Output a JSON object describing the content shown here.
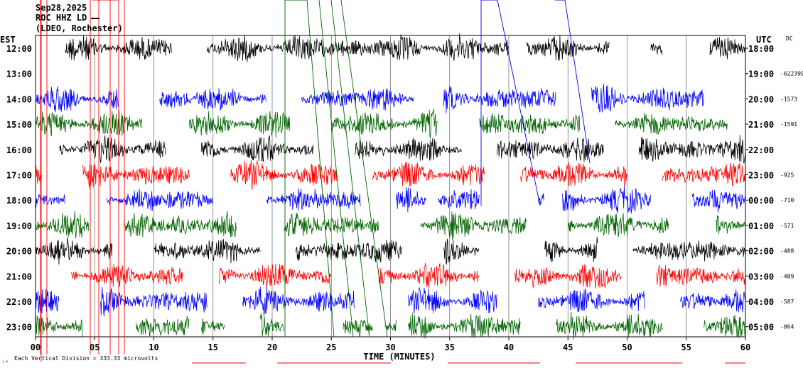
{
  "header": {
    "date": "Sep28,2025",
    "station": "ROC HHZ LD",
    "network": "(LDEO, Rochester)"
  },
  "left_label": "EST",
  "right_label": "UTC",
  "dc_label": "DC",
  "footer_note": "Each Vertical Division = 333.33 microvolts",
  "chart_data": {
    "type": "line",
    "xlabel": "TIME (MINUTES)",
    "xlim": [
      0,
      60
    ],
    "x_ticks": [
      "00",
      "05",
      "10",
      "15",
      "20",
      "25",
      "30",
      "35",
      "40",
      "45",
      "50",
      "55",
      "60"
    ],
    "rows": [
      {
        "est": "12:00",
        "utc": "18:00",
        "dc": "",
        "color": "#000000"
      },
      {
        "est": "13:00",
        "utc": "19:00",
        "dc": "-622399",
        "color": "#ff0000"
      },
      {
        "est": "14:00",
        "utc": "20:00",
        "dc": "-1573",
        "color": "#0000ff"
      },
      {
        "est": "15:00",
        "utc": "21:00",
        "dc": "-1591",
        "color": "#006400"
      },
      {
        "est": "16:00",
        "utc": "22:00",
        "dc": "",
        "color": "#000000"
      },
      {
        "est": "17:00",
        "utc": "23:00",
        "dc": "-925",
        "color": "#ff0000"
      },
      {
        "est": "18:00",
        "utc": "00:00",
        "dc": "-710",
        "color": "#0000ff"
      },
      {
        "est": "19:00",
        "utc": "01:00",
        "dc": "-571",
        "color": "#006400"
      },
      {
        "est": "20:00",
        "utc": "02:00",
        "dc": "-488",
        "color": "#000000"
      },
      {
        "est": "21:00",
        "utc": "03:00",
        "dc": "-489",
        "color": "#ff0000"
      },
      {
        "est": "22:00",
        "utc": "04:00",
        "dc": "-587",
        "color": "#0000ff"
      },
      {
        "est": "23:00",
        "utc": "05:00",
        "dc": "-864",
        "color": "#006400"
      }
    ],
    "segments": [
      [
        [
          2.5,
          11.5
        ],
        [
          14.5,
          16.5
        ],
        [
          16.5,
          27.5
        ],
        [
          27.0,
          36.5
        ],
        [
          36.5,
          40.0
        ],
        [
          41.5,
          48.5
        ],
        [
          52.0,
          53.0
        ],
        [
          57.0,
          60.0
        ]
      ],
      [],
      [
        [
          0,
          7.0
        ],
        [
          10.5,
          19.5
        ],
        [
          22.5,
          32.0
        ],
        [
          34.5,
          44.0
        ],
        [
          47.0,
          56.5
        ]
      ],
      [
        [
          0,
          9.0
        ],
        [
          13.0,
          21.5
        ],
        [
          25.0,
          34.0
        ],
        [
          37.5,
          46.0
        ],
        [
          49.0,
          58.5
        ]
      ],
      [
        [
          2.0,
          11.0
        ],
        [
          14.0,
          23.5
        ],
        [
          27.0,
          36.0
        ],
        [
          39.0,
          48.0
        ],
        [
          51.0,
          60.0
        ]
      ],
      [
        [
          0,
          0.5
        ],
        [
          4.0,
          13.0
        ],
        [
          16.5,
          25.5
        ],
        [
          28.5,
          38.0
        ],
        [
          41.0,
          50.0
        ],
        [
          53.0,
          60.0
        ]
      ],
      [
        [
          0,
          2.5
        ],
        [
          6.0,
          15.0
        ],
        [
          19.5,
          27.5
        ],
        [
          30.5,
          33.0
        ],
        [
          34.0,
          37.5
        ],
        [
          42.5,
          43.0
        ],
        [
          44.5,
          52.0
        ],
        [
          55.5,
          60.0
        ]
      ],
      [
        [
          0,
          4.5
        ],
        [
          7.5,
          17.0
        ],
        [
          21.0,
          29.0
        ],
        [
          32.5,
          41.5
        ],
        [
          45.0,
          53.5
        ],
        [
          57.5,
          60.0
        ]
      ],
      [
        [
          0,
          6.5
        ],
        [
          10.0,
          19.0
        ],
        [
          22.0,
          31.0
        ],
        [
          34.5,
          37.5
        ],
        [
          43.0,
          47.5
        ],
        [
          50.5,
          60.0
        ]
      ],
      [
        [
          3.0,
          12.5
        ],
        [
          15.5,
          25.0
        ],
        [
          29.0,
          37.5
        ],
        [
          40.5,
          49.5
        ],
        [
          52.5,
          60.0
        ]
      ],
      [
        [
          0,
          2.0
        ],
        [
          5.5,
          14.5
        ],
        [
          17.5,
          27.0
        ],
        [
          31.5,
          39.0
        ],
        [
          42.5,
          51.5
        ],
        [
          54.5,
          60.0
        ]
      ],
      [
        [
          0,
          4.0
        ],
        [
          8.5,
          13.0
        ],
        [
          14.0,
          16.0
        ],
        [
          19.0,
          21.0
        ],
        [
          26.0,
          28.5
        ],
        [
          29.5,
          30.5
        ],
        [
          31.5,
          41.0
        ],
        [
          44.0,
          53.0
        ],
        [
          56.5,
          60.0
        ]
      ]
    ],
    "amplitude": 0.55,
    "grid": true,
    "vertical_grid_minutes": [
      5,
      10,
      15,
      20,
      25,
      30,
      35,
      40,
      45,
      50,
      55
    ]
  }
}
